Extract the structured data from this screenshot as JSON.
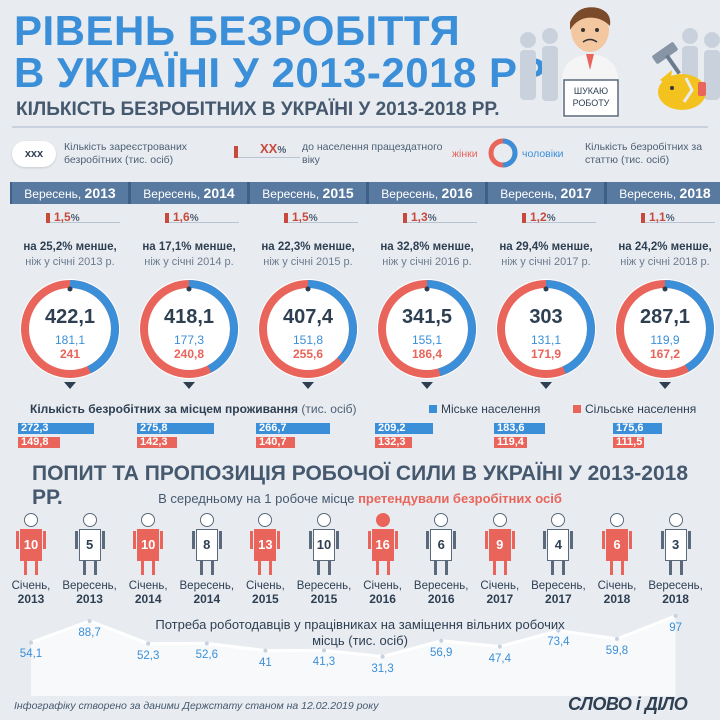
{
  "header": {
    "title_line1": "РІВЕНЬ БЕЗРОБІТТЯ",
    "title_line2": "В УКРАЇНІ У 2013-2018 РР.",
    "subtitle": "КІЛЬКІСТЬ БЕЗРОБІТНИХ В УКРАЇНІ У 2013-2018 РР.",
    "sign_text": "ШУКАЮ РОБОТУ"
  },
  "legend": {
    "registered_badge": "xxx",
    "registered_text": "Кількість зареєстрованих безробітних (тис. осіб)",
    "pct_badge": "XX",
    "pct_symbol": "%",
    "pct_text": "до населення працездатного віку",
    "women": "жінки",
    "men": "чоловіки",
    "by_sex_text": "Кількість безробітних за статтю (тис. осіб)"
  },
  "colors": {
    "blue": "#3a8fd8",
    "red": "#e9645a",
    "navy": "#3e5f87"
  },
  "residence": {
    "title": "Кількість безробітних за місцем проживання",
    "unit": "(тис. осіб)",
    "urban": "Міське населення",
    "rural": "Сільське населення"
  },
  "demand": {
    "title": "ПОПИТ ТА ПРОПОЗИЦІЯ РОБОЧОЇ СИЛИ В УКРАЇНІ У 2013-2018 РР.",
    "subtitle_pre": "В середньому на 1 робоче місце",
    "subtitle_hl": "претендували безробітних осіб",
    "line_title": "Потреба роботодавців у працівниках на заміщення вільних робочих місць (тис. осіб)"
  },
  "footer": {
    "source": "Інфографіку створено за даними Держстату станом на 12.02.2019 року",
    "logo": "СЛОВО і ДІЛО"
  },
  "chart_data": [
    {
      "type": "table",
      "month_label": "Вересень,",
      "years": [
        "2013",
        "2014",
        "2015",
        "2016",
        "2017",
        "2018"
      ],
      "percent": [
        "1,5",
        "1,6",
        "1,5",
        "1,3",
        "1,2",
        "1,1"
      ],
      "change_line1": [
        "на 25,2% менше,",
        "на 17,1% менше,",
        "на 22,3% менше,",
        "на 32,8% менше,",
        "на 29,4% менше,",
        "на 24,2% менше,"
      ],
      "change_line2": [
        "ніж у січні 2013 р.",
        "ніж у січні 2014 р.",
        "ніж у січні 2015 р.",
        "ніж у січні 2016 р.",
        "ніж у січні 2017 р.",
        "ніж у січні 2018 р."
      ],
      "total": [
        "422,1",
        "418,1",
        "407,4",
        "341,5",
        "303",
        "287,1"
      ],
      "men": [
        181.1,
        177.3,
        151.8,
        155.1,
        131.1,
        119.9
      ],
      "women": [
        241,
        240.8,
        255.6,
        186.4,
        171.9,
        167.2
      ],
      "men_label": [
        "181,1",
        "177,3",
        "151,8",
        "155,1",
        "131,1",
        "119,9"
      ],
      "women_label": [
        "241",
        "240,8",
        "255,6",
        "186,4",
        "171,9",
        "167,2"
      ],
      "urban": [
        272.3,
        275.8,
        266.7,
        209.2,
        183.6,
        175.6
      ],
      "rural": [
        149.8,
        142.3,
        140.7,
        132.3,
        119.4,
        111.5
      ],
      "urban_label": [
        "272,3",
        "275,8",
        "266,7",
        "209,2",
        "183,6",
        "175,6"
      ],
      "rural_label": [
        "149,8",
        "142,3",
        "140,7",
        "132,3",
        "119,4",
        "111,5"
      ]
    },
    {
      "type": "line",
      "periods": [
        {
          "month": "Січень,",
          "year": "2013"
        },
        {
          "month": "Вересень,",
          "year": "2013"
        },
        {
          "month": "Січень,",
          "year": "2014"
        },
        {
          "month": "Вересень,",
          "year": "2014"
        },
        {
          "month": "Січень,",
          "year": "2015"
        },
        {
          "month": "Вересень,",
          "year": "2015"
        },
        {
          "month": "Січень,",
          "year": "2016"
        },
        {
          "month": "Вересень,",
          "year": "2016"
        },
        {
          "month": "Січень,",
          "year": "2017"
        },
        {
          "month": "Вересень,",
          "year": "2017"
        },
        {
          "month": "Січень,",
          "year": "2018"
        },
        {
          "month": "Вересень,",
          "year": "2018"
        }
      ],
      "candidates_per_job": [
        "10",
        "5",
        "10",
        "8",
        "13",
        "10",
        "16",
        "6",
        "9",
        "4",
        "6",
        "3"
      ],
      "vacancies": [
        54.1,
        88.7,
        52.3,
        52.6,
        41,
        41.3,
        31.3,
        56.9,
        47.4,
        73.4,
        59.8,
        97
      ],
      "vacancies_label": [
        "54,1",
        "88,7",
        "52,3",
        "52,6",
        "41",
        "41,3",
        "31,3",
        "56,9",
        "47,4",
        "73,4",
        "59,8",
        "97"
      ]
    }
  ]
}
